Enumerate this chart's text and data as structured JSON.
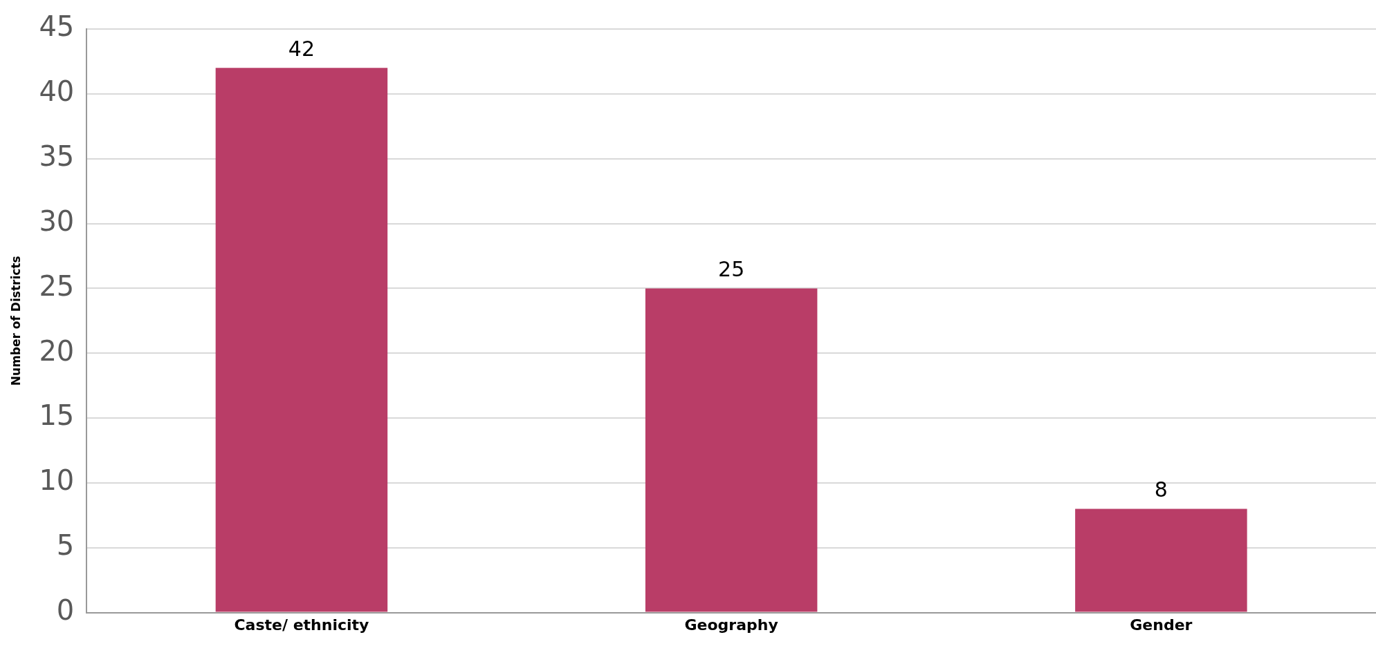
{
  "chart_data": {
    "type": "bar",
    "ylabel": "Number of Districts",
    "categories": [
      "Caste/ ethnicity",
      "Geography",
      "Gender"
    ],
    "values": [
      42,
      25,
      8
    ],
    "color": "#b93d67",
    "ylim": [
      0,
      45
    ],
    "yticks": [
      0,
      5,
      10,
      15,
      20,
      25,
      30,
      35,
      40,
      45
    ],
    "grid": "y",
    "data_labels": true,
    "legend": false
  }
}
